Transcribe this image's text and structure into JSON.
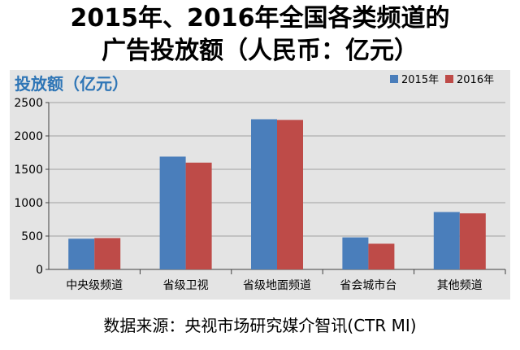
{
  "title_line_1": "2015年、2016年全国各类频道的",
  "title_line_2": "广告投放额（人民币：亿元）",
  "source": "数据来源：央视市场研究媒介智讯(CTR MI)",
  "chart_data": {
    "type": "bar",
    "title": "",
    "ylabel": "投放额（亿元）",
    "xlabel": "",
    "categories": [
      "中央级频道",
      "省级卫视",
      "省级地面频道",
      "省会城市台",
      "其他频道"
    ],
    "series": [
      {
        "name": "2015年",
        "color": "#4a7ebb",
        "values": [
          460,
          1690,
          2250,
          480,
          860
        ]
      },
      {
        "name": "2016年",
        "color": "#be4b48",
        "values": [
          470,
          1600,
          2240,
          385,
          840
        ]
      }
    ],
    "ylim": [
      0,
      2500
    ],
    "yticks": [
      0,
      500,
      1000,
      1500,
      2000,
      2500
    ],
    "grid": true,
    "legend_position": "top-right",
    "label_color": "#2e75b6",
    "grid_color": "#a0a0a0"
  }
}
